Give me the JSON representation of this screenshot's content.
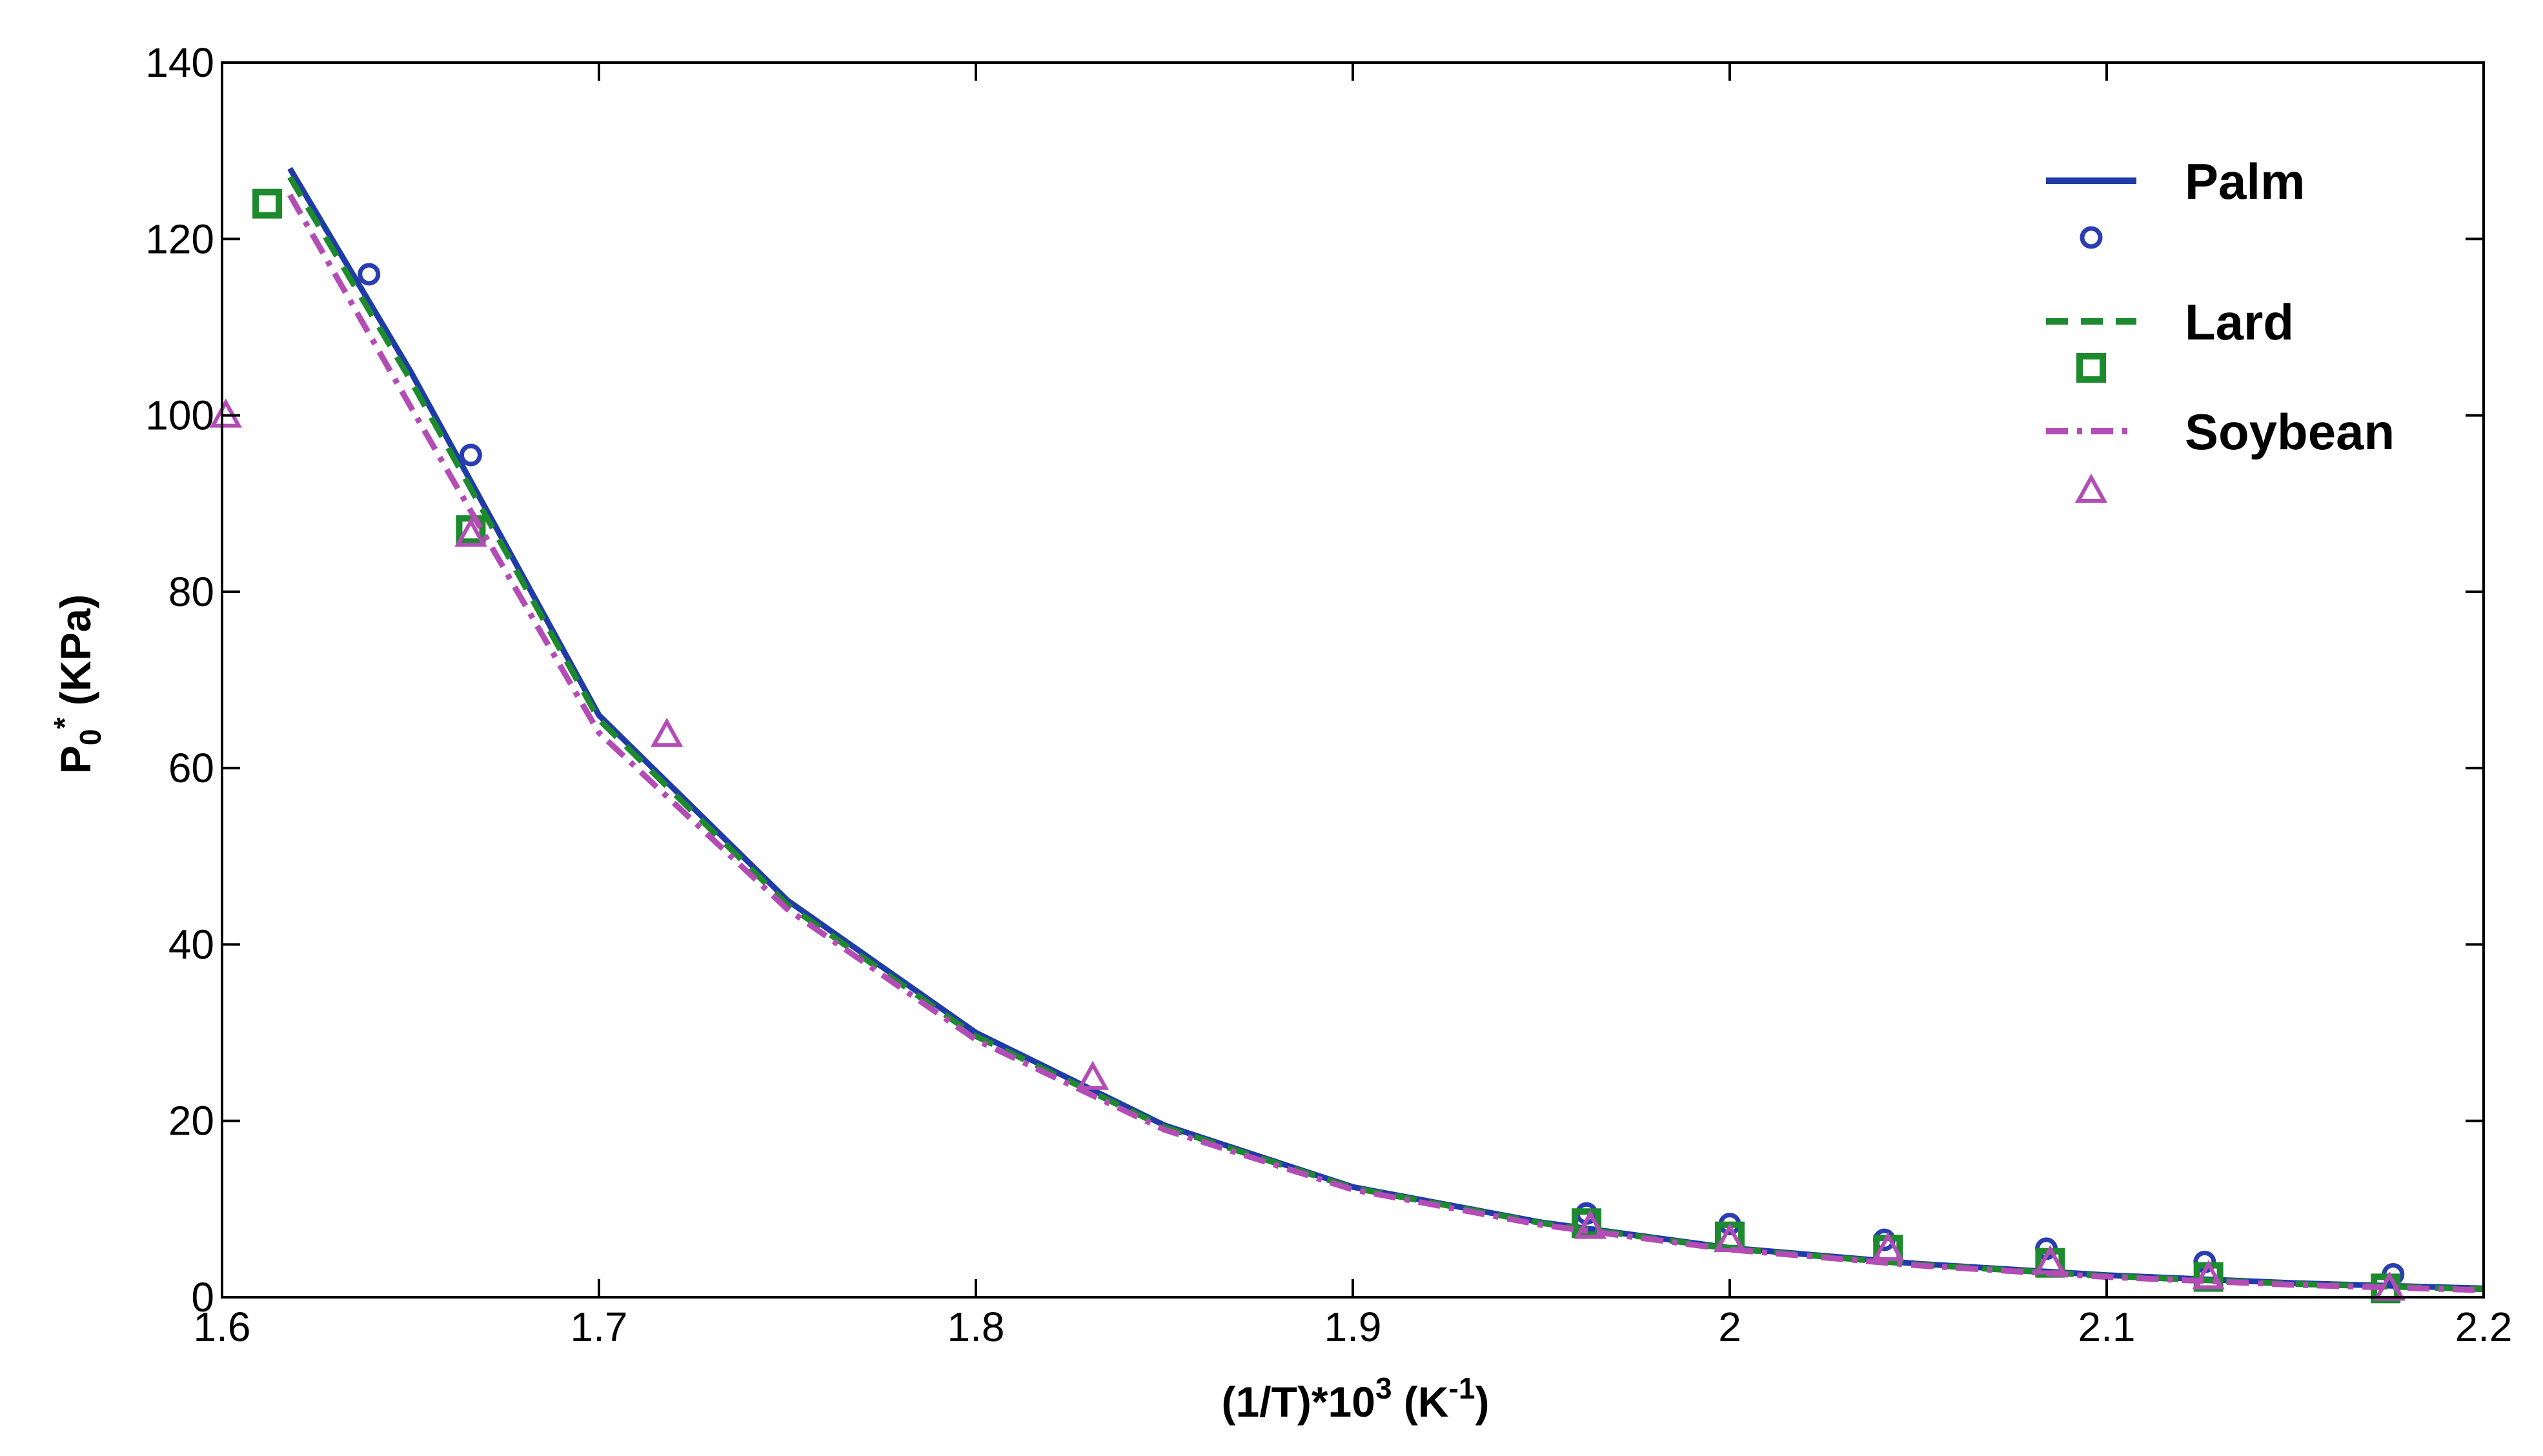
{
  "chart_data": {
    "type": "line",
    "title": "",
    "xlabel": {
      "prefix": "(1/T)*10",
      "sup1": "3",
      "mid": " (K",
      "sup2": "-1",
      "suffix": ")"
    },
    "ylabel": {
      "prefix": "P",
      "sub": "0",
      "sup": "*",
      "suffix": " (KPa)"
    },
    "xlim": [
      1.6,
      2.2
    ],
    "ylim": [
      0,
      140
    ],
    "x_ticks": [
      1.6,
      1.7,
      1.8,
      1.9,
      2.0,
      2.1,
      2.2
    ],
    "x_tick_labels": [
      "1.6",
      "1.7",
      "1.8",
      "1.9",
      "2",
      "2.1",
      "2.2"
    ],
    "y_ticks": [
      0,
      20,
      40,
      60,
      80,
      100,
      120,
      140
    ],
    "y_tick_labels": [
      "0",
      "20",
      "40",
      "60",
      "80",
      "100",
      "120",
      "140"
    ],
    "grid": false,
    "legend_position": "top-right",
    "series": [
      {
        "name": "Palm",
        "kind": "line",
        "style": "solid",
        "color": "#1f3ba8",
        "points": [
          [
            1.618,
            128
          ],
          [
            1.65,
            105
          ],
          [
            1.7,
            66
          ],
          [
            1.75,
            45
          ],
          [
            1.8,
            30
          ],
          [
            1.85,
            19.5
          ],
          [
            1.9,
            12.5
          ],
          [
            1.95,
            8.5
          ],
          [
            2.0,
            5.6
          ],
          [
            2.05,
            3.8
          ],
          [
            2.1,
            2.5
          ],
          [
            2.15,
            1.6
          ],
          [
            2.2,
            1.0
          ]
        ]
      },
      {
        "kind": "markers",
        "marker": "circle",
        "color": "#2a3eb1",
        "points": [
          [
            1.639,
            116
          ],
          [
            1.666,
            95.5
          ],
          [
            1.962,
            9.5
          ],
          [
            2.0,
            8.3
          ],
          [
            2.041,
            6.5
          ],
          [
            2.084,
            5.5
          ],
          [
            2.126,
            4.0
          ],
          [
            2.176,
            2.6
          ]
        ]
      },
      {
        "name": "Lard",
        "kind": "line",
        "style": "dashed",
        "color": "#1d8a2e",
        "points": [
          [
            1.618,
            127
          ],
          [
            1.65,
            104
          ],
          [
            1.7,
            65.5
          ],
          [
            1.75,
            44.5
          ],
          [
            1.8,
            29.6
          ],
          [
            1.85,
            19.3
          ],
          [
            1.9,
            12.4
          ],
          [
            1.95,
            8.4
          ],
          [
            2.0,
            5.5
          ],
          [
            2.05,
            3.7
          ],
          [
            2.1,
            2.4
          ],
          [
            2.15,
            1.5
          ],
          [
            2.2,
            0.9
          ]
        ]
      },
      {
        "kind": "markers",
        "marker": "square",
        "color": "#1d8a2e",
        "points": [
          [
            1.612,
            124
          ],
          [
            1.666,
            87
          ],
          [
            1.962,
            8.4
          ],
          [
            2.0,
            6.9
          ],
          [
            2.042,
            5.4
          ],
          [
            2.085,
            3.9
          ],
          [
            2.127,
            2.3
          ],
          [
            2.174,
            1.0
          ]
        ]
      },
      {
        "name": "Soybean",
        "kind": "line",
        "style": "dash-dot",
        "color": "#b44cb6",
        "points": [
          [
            1.618,
            125
          ],
          [
            1.65,
            101
          ],
          [
            1.7,
            64
          ],
          [
            1.75,
            44
          ],
          [
            1.8,
            29.2
          ],
          [
            1.85,
            19
          ],
          [
            1.9,
            12.2
          ],
          [
            1.95,
            8.2
          ],
          [
            2.0,
            5.4
          ],
          [
            2.05,
            3.6
          ],
          [
            2.1,
            2.3
          ],
          [
            2.15,
            1.4
          ],
          [
            2.2,
            0.8
          ]
        ]
      },
      {
        "kind": "markers",
        "marker": "triangle",
        "color": "#b44cb6",
        "points": [
          [
            1.601,
            100
          ],
          [
            1.666,
            86.5
          ],
          [
            1.718,
            63.8
          ],
          [
            1.831,
            24.9
          ],
          [
            1.963,
            8.0
          ],
          [
            2.0,
            6.5
          ],
          [
            2.042,
            5.5
          ],
          [
            2.085,
            4.0
          ],
          [
            2.127,
            2.3
          ],
          [
            2.175,
            1.0
          ]
        ]
      }
    ],
    "legend": [
      {
        "label": "Palm",
        "line_series": 0,
        "marker_series": 1
      },
      {
        "label": "Lard",
        "line_series": 2,
        "marker_series": 3
      },
      {
        "label": "Soybean",
        "line_series": 4,
        "marker_series": 5
      }
    ]
  }
}
